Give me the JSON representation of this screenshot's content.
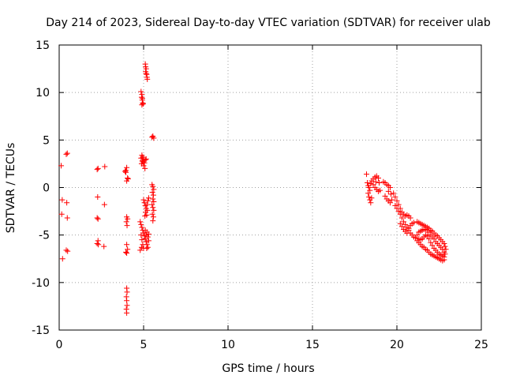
{
  "chart_data": {
    "type": "scatter",
    "title": "Day 214 of 2023, Sidereal Day-to-day VTEC variation (SDTVAR) for receiver ulab",
    "xlabel": "GPS time / hours",
    "ylabel": "SDTVAR / TECUs",
    "xlim": [
      0,
      25
    ],
    "ylim": [
      -15,
      15
    ],
    "xticks": [
      0,
      5,
      10,
      15,
      20,
      25
    ],
    "yticks": [
      -15,
      -10,
      -5,
      0,
      5,
      10,
      15
    ],
    "xtick_labels": [
      "0",
      "5",
      "10",
      "15",
      "20",
      "25"
    ],
    "ytick_labels": [
      "-15",
      "-10",
      "-5",
      "0",
      "5",
      "10",
      "15"
    ],
    "grid": true,
    "marker": "+",
    "marker_color": "#ff0000",
    "series": [
      {
        "name": "SDTVAR",
        "points": [
          [
            0.12,
            2.3
          ],
          [
            0.18,
            -1.3
          ],
          [
            0.15,
            -2.8
          ],
          [
            0.2,
            -7.5
          ],
          [
            0.42,
            3.5
          ],
          [
            0.48,
            3.6
          ],
          [
            0.45,
            -1.6
          ],
          [
            0.48,
            -3.2
          ],
          [
            0.42,
            -6.6
          ],
          [
            0.5,
            -6.7
          ],
          [
            2.25,
            1.9
          ],
          [
            2.3,
            2.0
          ],
          [
            2.28,
            -1.0
          ],
          [
            2.3,
            -3.3
          ],
          [
            2.25,
            -3.2
          ],
          [
            2.3,
            -5.6
          ],
          [
            2.25,
            -5.9
          ],
          [
            2.32,
            -6.0
          ],
          [
            2.7,
            2.2
          ],
          [
            2.68,
            -1.8
          ],
          [
            2.65,
            -6.2
          ],
          [
            3.9,
            1.7
          ],
          [
            3.95,
            1.8
          ],
          [
            4.0,
            2.1
          ],
          [
            3.95,
            1.6
          ],
          [
            4.05,
            1.0
          ],
          [
            4.0,
            0.7
          ],
          [
            4.08,
            0.9
          ],
          [
            4.0,
            -3.1
          ],
          [
            4.05,
            -3.3
          ],
          [
            3.98,
            -3.6
          ],
          [
            4.02,
            -4.0
          ],
          [
            4.0,
            -6.0
          ],
          [
            4.05,
            -6.5
          ],
          [
            4.0,
            -6.9
          ],
          [
            3.95,
            -6.8
          ],
          [
            4.0,
            -10.6
          ],
          [
            4.02,
            -11.0
          ],
          [
            3.98,
            -11.5
          ],
          [
            4.0,
            -11.9
          ],
          [
            4.02,
            -12.4
          ],
          [
            3.98,
            -12.8
          ],
          [
            4.0,
            -13.2
          ],
          [
            4.85,
            10.1
          ],
          [
            4.9,
            9.8
          ],
          [
            4.88,
            9.5
          ],
          [
            4.92,
            9.2
          ],
          [
            4.95,
            8.9
          ],
          [
            4.9,
            8.7
          ],
          [
            4.97,
            8.8
          ],
          [
            4.93,
            9.4
          ],
          [
            5.1,
            13.0
          ],
          [
            5.12,
            12.7
          ],
          [
            5.15,
            12.5
          ],
          [
            5.12,
            12.2
          ],
          [
            5.18,
            11.9
          ],
          [
            5.2,
            11.6
          ],
          [
            5.15,
            12.0
          ],
          [
            5.22,
            11.4
          ],
          [
            5.5,
            5.3
          ],
          [
            5.55,
            5.4
          ],
          [
            5.6,
            5.2
          ],
          [
            4.85,
            3.1
          ],
          [
            4.9,
            3.4
          ],
          [
            4.95,
            3.2
          ],
          [
            5.0,
            3.0
          ],
          [
            4.92,
            2.8
          ],
          [
            4.88,
            2.5
          ],
          [
            5.05,
            2.6
          ],
          [
            5.1,
            2.9
          ],
          [
            5.15,
            3.0
          ],
          [
            5.0,
            2.3
          ],
          [
            5.08,
            2.0
          ],
          [
            4.95,
            2.7
          ],
          [
            5.5,
            0.3
          ],
          [
            5.55,
            0.1
          ],
          [
            5.6,
            -0.2
          ],
          [
            5.52,
            -0.5
          ],
          [
            5.58,
            -0.8
          ],
          [
            5.55,
            -1.2
          ],
          [
            5.6,
            -1.5
          ],
          [
            5.5,
            -1.8
          ],
          [
            5.55,
            -2.1
          ],
          [
            5.6,
            -2.4
          ],
          [
            5.52,
            -2.8
          ],
          [
            5.58,
            -3.1
          ],
          [
            5.55,
            -3.5
          ],
          [
            5.0,
            -1.3
          ],
          [
            5.05,
            -1.6
          ],
          [
            5.1,
            -1.9
          ],
          [
            5.15,
            -2.2
          ],
          [
            5.2,
            -1.8
          ],
          [
            5.25,
            -1.4
          ],
          [
            5.3,
            -1.1
          ],
          [
            5.12,
            -2.6
          ],
          [
            5.08,
            -3.0
          ],
          [
            5.18,
            -2.9
          ],
          [
            5.22,
            -2.4
          ],
          [
            4.8,
            -3.6
          ],
          [
            4.85,
            -3.9
          ],
          [
            4.9,
            -4.2
          ],
          [
            4.95,
            -4.5
          ],
          [
            5.0,
            -4.8
          ],
          [
            5.05,
            -5.1
          ],
          [
            5.1,
            -5.4
          ],
          [
            5.15,
            -5.7
          ],
          [
            5.2,
            -6.0
          ],
          [
            5.25,
            -6.3
          ],
          [
            4.85,
            -5.0
          ],
          [
            4.9,
            -5.5
          ],
          [
            4.95,
            -6.0
          ],
          [
            5.0,
            -6.4
          ],
          [
            4.8,
            -6.6
          ],
          [
            5.1,
            -4.5
          ],
          [
            5.15,
            -5.0
          ],
          [
            5.2,
            -4.7
          ],
          [
            5.25,
            -5.2
          ],
          [
            5.3,
            -4.9
          ],
          [
            5.3,
            -5.6
          ],
          [
            5.18,
            -6.4
          ],
          [
            4.88,
            -6.3
          ],
          [
            18.2,
            1.4
          ],
          [
            18.25,
            0.5
          ],
          [
            18.3,
            0.2
          ],
          [
            18.35,
            0.0
          ],
          [
            18.4,
            -0.3
          ],
          [
            18.3,
            -0.6
          ],
          [
            18.35,
            -1.0
          ],
          [
            18.4,
            -1.3
          ],
          [
            18.45,
            -1.6
          ],
          [
            18.5,
            -1.1
          ],
          [
            18.45,
            0.4
          ],
          [
            18.5,
            0.7
          ],
          [
            18.6,
            0.9
          ],
          [
            18.7,
            1.1
          ],
          [
            18.8,
            1.2
          ],
          [
            18.9,
            1.0
          ],
          [
            18.6,
            0.3
          ],
          [
            18.7,
            0.0
          ],
          [
            18.8,
            -0.2
          ],
          [
            18.9,
            -0.4
          ],
          [
            19.0,
            -0.3
          ],
          [
            18.75,
            0.6
          ],
          [
            18.95,
            0.5
          ],
          [
            19.2,
            0.6
          ],
          [
            19.3,
            0.5
          ],
          [
            19.4,
            0.3
          ],
          [
            19.5,
            0.2
          ],
          [
            19.6,
            0.0
          ],
          [
            19.3,
            -0.9
          ],
          [
            19.4,
            -1.2
          ],
          [
            19.5,
            -1.4
          ],
          [
            19.6,
            -1.6
          ],
          [
            19.7,
            -1.3
          ],
          [
            19.5,
            -0.4
          ],
          [
            19.65,
            -0.7
          ],
          [
            19.8,
            -0.6
          ],
          [
            19.9,
            -1.0
          ],
          [
            20.0,
            -1.4
          ],
          [
            20.1,
            -1.8
          ],
          [
            20.2,
            -2.2
          ],
          [
            20.3,
            -2.6
          ],
          [
            20.4,
            -2.8
          ],
          [
            20.5,
            -3.0
          ],
          [
            20.6,
            -2.9
          ],
          [
            20.7,
            -3.0
          ],
          [
            20.8,
            -3.2
          ],
          [
            19.9,
            -1.9
          ],
          [
            20.0,
            -2.2
          ],
          [
            20.1,
            -2.5
          ],
          [
            20.2,
            -2.8
          ],
          [
            20.3,
            -3.2
          ],
          [
            20.4,
            -3.6
          ],
          [
            20.5,
            -3.9
          ],
          [
            20.6,
            -4.2
          ],
          [
            20.7,
            -4.5
          ],
          [
            20.8,
            -4.8
          ],
          [
            20.9,
            -5.0
          ],
          [
            21.0,
            -5.2
          ],
          [
            20.2,
            -3.8
          ],
          [
            20.3,
            -4.1
          ],
          [
            20.4,
            -4.4
          ],
          [
            20.5,
            -4.6
          ],
          [
            20.6,
            -4.8
          ],
          [
            20.7,
            -4.3
          ],
          [
            20.8,
            -4.0
          ],
          [
            20.9,
            -3.8
          ],
          [
            21.0,
            -3.7
          ],
          [
            21.1,
            -5.3
          ],
          [
            21.2,
            -5.6
          ],
          [
            21.3,
            -5.8
          ],
          [
            21.4,
            -6.0
          ],
          [
            21.5,
            -6.2
          ],
          [
            21.6,
            -6.3
          ],
          [
            21.7,
            -6.5
          ],
          [
            21.8,
            -6.6
          ],
          [
            21.9,
            -6.8
          ],
          [
            22.0,
            -7.0
          ],
          [
            22.1,
            -7.1
          ],
          [
            22.2,
            -7.2
          ],
          [
            22.3,
            -7.3
          ],
          [
            22.4,
            -7.4
          ],
          [
            22.5,
            -7.5
          ],
          [
            22.6,
            -7.6
          ],
          [
            22.7,
            -7.7
          ],
          [
            22.8,
            -7.6
          ],
          [
            21.2,
            -3.6
          ],
          [
            21.3,
            -3.7
          ],
          [
            21.4,
            -3.8
          ],
          [
            21.5,
            -3.9
          ],
          [
            21.6,
            -4.0
          ],
          [
            21.7,
            -4.1
          ],
          [
            21.8,
            -4.2
          ],
          [
            21.9,
            -4.3
          ],
          [
            22.0,
            -4.5
          ],
          [
            22.1,
            -4.6
          ],
          [
            22.2,
            -4.8
          ],
          [
            22.3,
            -5.0
          ],
          [
            22.4,
            -5.1
          ],
          [
            22.5,
            -5.3
          ],
          [
            22.6,
            -5.5
          ],
          [
            22.7,
            -5.7
          ],
          [
            22.8,
            -5.9
          ],
          [
            22.85,
            -6.2
          ],
          [
            22.9,
            -6.5
          ],
          [
            22.8,
            -6.8
          ],
          [
            21.3,
            -4.7
          ],
          [
            21.4,
            -4.6
          ],
          [
            21.5,
            -4.5
          ],
          [
            21.6,
            -4.4
          ],
          [
            21.7,
            -4.4
          ],
          [
            21.8,
            -4.5
          ],
          [
            21.9,
            -4.7
          ],
          [
            22.0,
            -5.0
          ],
          [
            22.1,
            -5.2
          ],
          [
            22.2,
            -5.4
          ],
          [
            22.3,
            -5.7
          ],
          [
            22.4,
            -5.9
          ],
          [
            22.5,
            -6.1
          ],
          [
            22.6,
            -6.3
          ],
          [
            22.7,
            -6.5
          ],
          [
            21.2,
            -5.0
          ],
          [
            21.3,
            -5.4
          ],
          [
            21.4,
            -5.5
          ],
          [
            21.5,
            -5.4
          ],
          [
            21.6,
            -5.2
          ],
          [
            21.7,
            -5.0
          ],
          [
            21.8,
            -5.1
          ],
          [
            21.9,
            -5.4
          ],
          [
            22.0,
            -5.8
          ],
          [
            22.1,
            -6.1
          ],
          [
            22.2,
            -6.4
          ],
          [
            22.3,
            -6.6
          ],
          [
            22.4,
            -6.8
          ],
          [
            22.5,
            -7.0
          ],
          [
            22.6,
            -7.1
          ],
          [
            22.7,
            -7.2
          ],
          [
            22.8,
            -7.3
          ],
          [
            22.85,
            -7.0
          ]
        ]
      }
    ]
  }
}
